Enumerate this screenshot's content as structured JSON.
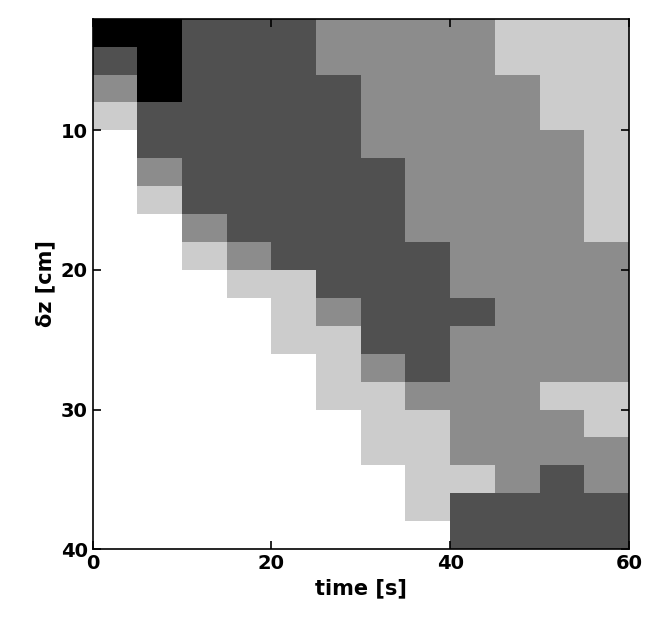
{
  "chart_data": {
    "type": "heatmap",
    "x_label": "time [s]",
    "y_label": "δz [cm]",
    "xlim": [
      0,
      60
    ],
    "ylim": [
      40,
      2
    ],
    "xticks": [
      0,
      20,
      40,
      60
    ],
    "yticks": [
      10,
      20,
      30,
      40
    ],
    "grid": false,
    "colors": [
      "#ffffff",
      "#cccccc",
      "#8c8c8c",
      "#505050",
      "#000000"
    ],
    "x": [
      0,
      5,
      10,
      15,
      20,
      25,
      30,
      35,
      40,
      45,
      50,
      55,
      60
    ],
    "y": [
      2,
      4,
      6,
      8,
      10,
      12,
      14,
      16,
      18,
      20,
      22,
      24,
      26,
      28,
      30,
      32,
      34,
      36,
      38,
      40
    ],
    "cells": [
      [
        4,
        4,
        3,
        3,
        3,
        2,
        2,
        2,
        2,
        1,
        1,
        1
      ],
      [
        3,
        4,
        3,
        3,
        3,
        2,
        2,
        2,
        2,
        1,
        1,
        1
      ],
      [
        2,
        4,
        3,
        3,
        3,
        3,
        2,
        2,
        2,
        2,
        1,
        1
      ],
      [
        1,
        3,
        3,
        3,
        3,
        3,
        2,
        2,
        2,
        2,
        1,
        1
      ],
      [
        0,
        3,
        3,
        3,
        3,
        3,
        2,
        2,
        2,
        2,
        2,
        1
      ],
      [
        0,
        2,
        3,
        3,
        3,
        3,
        3,
        2,
        2,
        2,
        2,
        1
      ],
      [
        0,
        1,
        3,
        3,
        3,
        3,
        3,
        2,
        2,
        2,
        2,
        1
      ],
      [
        0,
        0,
        2,
        3,
        3,
        3,
        3,
        2,
        2,
        2,
        2,
        1
      ],
      [
        0,
        0,
        1,
        2,
        3,
        3,
        3,
        3,
        2,
        2,
        2,
        2
      ],
      [
        0,
        0,
        0,
        1,
        1,
        3,
        3,
        3,
        2,
        2,
        2,
        2
      ],
      [
        0,
        0,
        0,
        0,
        1,
        2,
        3,
        3,
        3,
        2,
        2,
        2
      ],
      [
        0,
        0,
        0,
        0,
        1,
        1,
        3,
        3,
        2,
        2,
        2,
        2
      ],
      [
        0,
        0,
        0,
        0,
        0,
        1,
        2,
        3,
        2,
        2,
        2,
        2
      ],
      [
        0,
        0,
        0,
        0,
        0,
        1,
        1,
        2,
        2,
        2,
        1,
        1
      ],
      [
        0,
        0,
        0,
        0,
        0,
        0,
        1,
        1,
        2,
        2,
        2,
        1
      ],
      [
        0,
        0,
        0,
        0,
        0,
        0,
        1,
        1,
        2,
        2,
        2,
        2
      ],
      [
        0,
        0,
        0,
        0,
        0,
        0,
        0,
        1,
        1,
        2,
        3,
        2
      ],
      [
        0,
        0,
        0,
        0,
        0,
        0,
        0,
        1,
        3,
        3,
        3,
        3
      ],
      [
        0,
        0,
        0,
        0,
        0,
        0,
        0,
        0,
        3,
        3,
        3,
        3
      ]
    ]
  }
}
